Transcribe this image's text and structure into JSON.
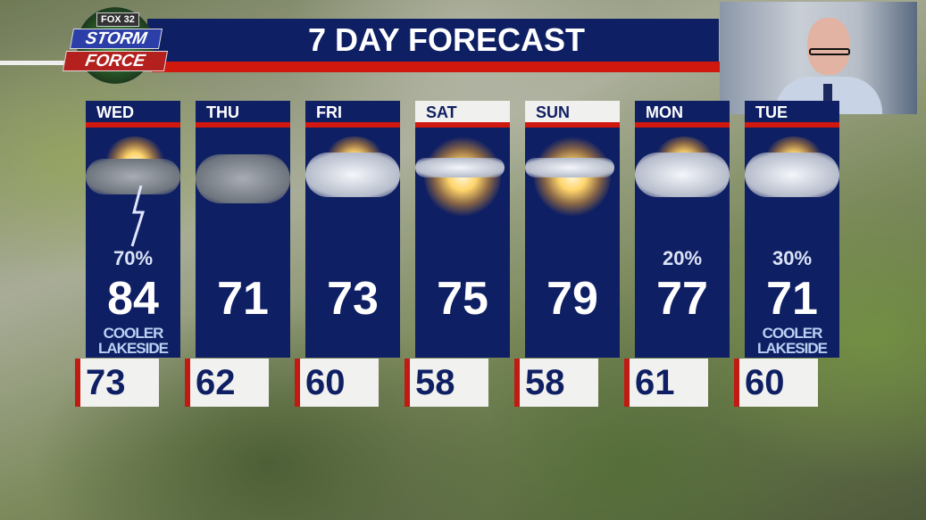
{
  "logo": {
    "network": "FOX 32",
    "line1": "STORM",
    "line2": "FORCE"
  },
  "title": "7 DAY FORECAST",
  "colors": {
    "navy": "#0f1f63",
    "red": "#d0180f"
  },
  "days": [
    {
      "day": "WED",
      "icon": "thunderstorm-icon",
      "pop": "70%",
      "high": "84",
      "note1": "COOLER",
      "note2": "LAKESIDE",
      "low": "73",
      "weekend": false
    },
    {
      "day": "THU",
      "icon": "cloudy-icon",
      "pop": "",
      "high": "71",
      "note1": "",
      "note2": "",
      "low": "62",
      "weekend": false
    },
    {
      "day": "FRI",
      "icon": "partly-cloudy-icon",
      "pop": "",
      "high": "73",
      "note1": "",
      "note2": "",
      "low": "60",
      "weekend": false
    },
    {
      "day": "SAT",
      "icon": "mostly-sunny-icon",
      "pop": "",
      "high": "75",
      "note1": "",
      "note2": "",
      "low": "58",
      "weekend": true
    },
    {
      "day": "SUN",
      "icon": "mostly-sunny-icon",
      "pop": "",
      "high": "79",
      "note1": "",
      "note2": "",
      "low": "58",
      "weekend": true
    },
    {
      "day": "MON",
      "icon": "partly-cloudy-icon",
      "pop": "20%",
      "high": "77",
      "note1": "",
      "note2": "",
      "low": "61",
      "weekend": false
    },
    {
      "day": "TUE",
      "icon": "partly-cloudy-icon",
      "pop": "30%",
      "high": "71",
      "note1": "COOLER",
      "note2": "LAKESIDE",
      "low": "60",
      "weekend": false
    }
  ]
}
